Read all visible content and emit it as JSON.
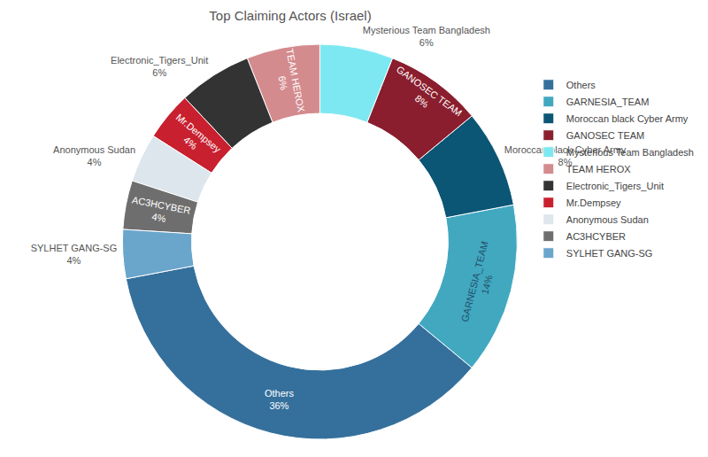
{
  "chart_data": {
    "type": "donut",
    "title": "Top Claiming Actors (Israel)",
    "categories": [
      "Others",
      "GARNESIA_TEAM",
      "Moroccan black Cyber Army",
      "GANOSEC TEAM",
      "Mysterious Team Bangladesh",
      "TEAM HEROX",
      "Electronic_Tigers_Unit",
      "Mr.Dempsey",
      "Anonymous Sudan",
      "AC3HCYBER",
      "SYLHET GANG-SG"
    ],
    "values": [
      36,
      14,
      8,
      8,
      6,
      6,
      6,
      4,
      4,
      4,
      4
    ],
    "value_labels": [
      "36%",
      "14%",
      "8%",
      "8%",
      "6%",
      "6%",
      "6%",
      "4%",
      "4%",
      "4%",
      "4%"
    ],
    "colors": [
      "#35709c",
      "#41a8c0",
      "#0b5575",
      "#8a1e2e",
      "#7ee8f2",
      "#d48b8e",
      "#333333",
      "#c8202f",
      "#dde6ec",
      "#6e6e6e",
      "#6aa5cc"
    ],
    "data_labels": true,
    "legend": "right"
  }
}
